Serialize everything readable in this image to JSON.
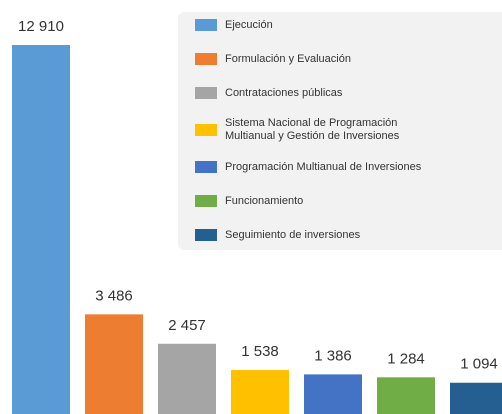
{
  "chart_data": {
    "type": "bar",
    "categories": [
      "Ejecución",
      "Formulación y Evaluación",
      "Contrataciones públicas",
      "Sistema Nacional de Programación Multianual y Gestión de Inversiones",
      "Programación Multianual de Inversiones",
      "Funcionamiento",
      "Seguimiento de inversiones"
    ],
    "values": [
      12910,
      3486,
      2457,
      1538,
      1386,
      1284,
      1094
    ],
    "value_labels": [
      "12 910",
      "3 486",
      "2 457",
      "1 538",
      "1 386",
      "1 284",
      "1 094"
    ],
    "colors": [
      "#5b9bd5",
      "#ed7d31",
      "#a5a5a5",
      "#ffc000",
      "#4472c4",
      "#70ad47",
      "#255e91"
    ]
  }
}
